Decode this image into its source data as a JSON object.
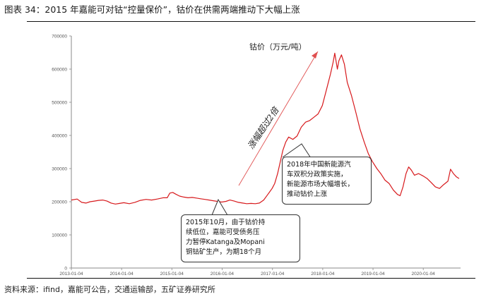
{
  "caption": "图表 34：2015 年嘉能可对钴“控量保价”，钴价在供需两端推动下大幅上涨",
  "source": "资料来源：ifind，嘉能可公告，交通运输部，五矿证券研究所",
  "chart_data": {
    "type": "line",
    "series": [
      {
        "name": "钴价（万元/吨）",
        "color": "#d7191c",
        "points": [
          [
            "2013-01-04",
            205000
          ],
          [
            "2013-02-15",
            208000
          ],
          [
            "2013-03-20",
            198000
          ],
          [
            "2013-04-20",
            196000
          ],
          [
            "2013-05-20",
            200000
          ],
          [
            "2013-06-20",
            202000
          ],
          [
            "2013-07-20",
            204000
          ],
          [
            "2013-08-20",
            205000
          ],
          [
            "2013-09-20",
            202000
          ],
          [
            "2013-10-20",
            196000
          ],
          [
            "2013-11-20",
            193000
          ],
          [
            "2013-12-20",
            195000
          ],
          [
            "2014-01-20",
            197000
          ],
          [
            "2014-03-01",
            194000
          ],
          [
            "2014-04-10",
            198000
          ],
          [
            "2014-05-20",
            204000
          ],
          [
            "2014-07-01",
            207000
          ],
          [
            "2014-08-10",
            205000
          ],
          [
            "2014-09-20",
            208000
          ],
          [
            "2014-11-01",
            212000
          ],
          [
            "2014-12-01",
            212000
          ],
          [
            "2014-12-20",
            226000
          ],
          [
            "2015-01-10",
            228000
          ],
          [
            "2015-02-01",
            223000
          ],
          [
            "2015-03-01",
            217000
          ],
          [
            "2015-04-01",
            214000
          ],
          [
            "2015-05-01",
            212000
          ],
          [
            "2015-06-01",
            213000
          ],
          [
            "2015-07-01",
            211000
          ],
          [
            "2015-08-01",
            209000
          ],
          [
            "2015-09-01",
            207000
          ],
          [
            "2015-10-01",
            205000
          ],
          [
            "2015-11-01",
            203000
          ],
          [
            "2015-12-01",
            201000
          ],
          [
            "2016-01-01",
            199000
          ],
          [
            "2016-02-01",
            201000
          ],
          [
            "2016-03-01",
            205000
          ],
          [
            "2016-04-01",
            202000
          ],
          [
            "2016-05-01",
            198000
          ],
          [
            "2016-06-01",
            196000
          ],
          [
            "2016-07-01",
            194000
          ],
          [
            "2016-08-01",
            195000
          ],
          [
            "2016-09-01",
            194000
          ],
          [
            "2016-10-01",
            196000
          ],
          [
            "2016-11-01",
            205000
          ],
          [
            "2016-12-01",
            222000
          ],
          [
            "2017-01-01",
            240000
          ],
          [
            "2017-01-20",
            255000
          ],
          [
            "2017-02-10",
            285000
          ],
          [
            "2017-03-01",
            320000
          ],
          [
            "2017-03-20",
            355000
          ],
          [
            "2017-04-10",
            380000
          ],
          [
            "2017-05-01",
            395000
          ],
          [
            "2017-06-01",
            388000
          ],
          [
            "2017-07-01",
            398000
          ],
          [
            "2017-08-01",
            425000
          ],
          [
            "2017-09-01",
            440000
          ],
          [
            "2017-10-01",
            445000
          ],
          [
            "2017-11-01",
            455000
          ],
          [
            "2017-12-01",
            465000
          ],
          [
            "2018-01-01",
            490000
          ],
          [
            "2018-02-01",
            540000
          ],
          [
            "2018-03-01",
            585000
          ],
          [
            "2018-03-20",
            620000
          ],
          [
            "2018-04-01",
            648000
          ],
          [
            "2018-04-20",
            600000
          ],
          [
            "2018-05-01",
            625000
          ],
          [
            "2018-05-20",
            643000
          ],
          [
            "2018-06-10",
            615000
          ],
          [
            "2018-07-01",
            560000
          ],
          [
            "2018-08-01",
            520000
          ],
          [
            "2018-09-01",
            470000
          ],
          [
            "2018-10-01",
            420000
          ],
          [
            "2018-11-01",
            380000
          ],
          [
            "2018-12-01",
            345000
          ],
          [
            "2019-01-01",
            320000
          ],
          [
            "2019-02-01",
            300000
          ],
          [
            "2019-03-01",
            285000
          ],
          [
            "2019-04-01",
            265000
          ],
          [
            "2019-05-01",
            255000
          ],
          [
            "2019-06-01",
            235000
          ],
          [
            "2019-07-01",
            222000
          ],
          [
            "2019-07-20",
            218000
          ],
          [
            "2019-08-10",
            245000
          ],
          [
            "2019-09-01",
            285000
          ],
          [
            "2019-09-20",
            305000
          ],
          [
            "2019-10-10",
            295000
          ],
          [
            "2019-11-01",
            280000
          ],
          [
            "2019-12-01",
            285000
          ],
          [
            "2020-01-01",
            278000
          ],
          [
            "2020-02-01",
            270000
          ],
          [
            "2020-03-01",
            258000
          ],
          [
            "2020-04-01",
            245000
          ],
          [
            "2020-05-01",
            240000
          ],
          [
            "2020-06-01",
            252000
          ],
          [
            "2020-07-01",
            262000
          ],
          [
            "2020-07-20",
            298000
          ],
          [
            "2020-08-10",
            285000
          ],
          [
            "2020-09-01",
            275000
          ],
          [
            "2020-09-20",
            270000
          ]
        ]
      }
    ],
    "xlabels": [
      "2013-01-04",
      "2014-01-04",
      "2015-01-04",
      "2016-01-04",
      "2017-01-04",
      "2018-01-04",
      "2019-01-04",
      "2020-01-04"
    ],
    "xlim": [
      "2013-01-04",
      "2020-10-01"
    ],
    "ylim": [
      0,
      700000
    ],
    "yticks": [
      0,
      100000,
      200000,
      300000,
      400000,
      500000,
      600000,
      700000
    ],
    "ytick_labels": [
      "0",
      "100000",
      "200000",
      "300000",
      "400000",
      "500000",
      "600000",
      "700000"
    ],
    "grid": false,
    "annotations": {
      "series_label": "钴价（万元/吨）",
      "arrow_label": "涨幅超过2倍",
      "note_2018": "2018年中国新能源汽\n车双积分政策实施，\n新能源市场大幅增长，\n推动钴价上涨",
      "note_2015": "2015年10月，由于钴价持\n续低位，嘉能可受债务压\n力暂停Katanga及Mopani\n铜钴矿生产，为期18个月"
    }
  }
}
